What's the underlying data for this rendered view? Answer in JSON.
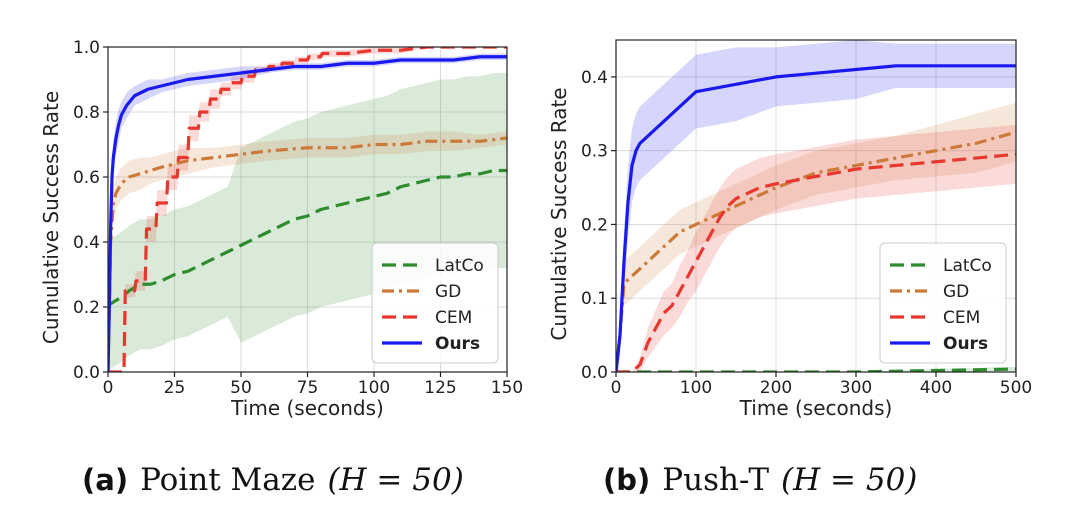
{
  "chart_data": [
    {
      "type": "line",
      "caption_letter": "(a)",
      "caption_title": "Point Maze",
      "caption_math": "(H = 50)",
      "xlabel": "Time (seconds)",
      "ylabel": "Cumulative Success Rate",
      "xlim": [
        0,
        150
      ],
      "ylim": [
        0,
        1.0
      ],
      "xticks": [
        0,
        25,
        50,
        75,
        100,
        125,
        150
      ],
      "yticks": [
        0.0,
        0.2,
        0.4,
        0.6,
        0.8,
        1.0
      ],
      "grid": true,
      "legend_position": "lower-right",
      "series": [
        {
          "name": "LatCo",
          "color": "#2e8b2e",
          "style": "dashed",
          "bold": false,
          "x": [
            0,
            1,
            3,
            5,
            8,
            12,
            16,
            20,
            25,
            30,
            35,
            40,
            45,
            50,
            55,
            60,
            65,
            70,
            75,
            80,
            85,
            90,
            95,
            100,
            105,
            110,
            115,
            120,
            125,
            130,
            135,
            140,
            145,
            150
          ],
          "y": [
            0.2,
            0.21,
            0.22,
            0.23,
            0.25,
            0.27,
            0.27,
            0.28,
            0.3,
            0.31,
            0.33,
            0.35,
            0.37,
            0.39,
            0.41,
            0.43,
            0.45,
            0.47,
            0.48,
            0.5,
            0.51,
            0.52,
            0.53,
            0.54,
            0.55,
            0.57,
            0.58,
            0.59,
            0.6,
            0.6,
            0.61,
            0.61,
            0.62,
            0.62
          ],
          "band": [
            0.2,
            0.2,
            0.2,
            0.2,
            0.2,
            0.2,
            0.2,
            0.2,
            0.2,
            0.2,
            0.2,
            0.2,
            0.2,
            0.3,
            0.3,
            0.3,
            0.3,
            0.3,
            0.3,
            0.3,
            0.3,
            0.3,
            0.3,
            0.3,
            0.3,
            0.3,
            0.3,
            0.3,
            0.3,
            0.3,
            0.3,
            0.3,
            0.3,
            0.3
          ]
        },
        {
          "name": "GD",
          "color": "#cc7a3a",
          "style": "dashdot",
          "bold": false,
          "x": [
            0,
            0.5,
            1,
            2,
            3,
            5,
            8,
            12,
            16,
            20,
            25,
            30,
            40,
            50,
            60,
            75,
            90,
            100,
            110,
            120,
            130,
            140,
            150
          ],
          "y": [
            0.0,
            0.2,
            0.4,
            0.52,
            0.55,
            0.58,
            0.6,
            0.61,
            0.62,
            0.63,
            0.64,
            0.65,
            0.66,
            0.67,
            0.68,
            0.69,
            0.69,
            0.7,
            0.7,
            0.71,
            0.71,
            0.71,
            0.72
          ],
          "band": [
            0.0,
            0.03,
            0.04,
            0.05,
            0.05,
            0.05,
            0.05,
            0.05,
            0.04,
            0.04,
            0.04,
            0.04,
            0.03,
            0.03,
            0.03,
            0.03,
            0.03,
            0.03,
            0.03,
            0.03,
            0.03,
            0.02,
            0.02
          ]
        },
        {
          "name": "CEM",
          "color": "#e8372e",
          "style": "dashed",
          "bold": false,
          "x": [
            0,
            5,
            6,
            6.5,
            10,
            10.5,
            14,
            14.5,
            18,
            18.5,
            22,
            22.5,
            26,
            26.5,
            30,
            30.5,
            34,
            34.5,
            38,
            38.5,
            42,
            42.5,
            46,
            46.5,
            50,
            50.5,
            55,
            55.5,
            60,
            60.5,
            65,
            65.5,
            70,
            70.5,
            75,
            75.5,
            80,
            80.5,
            90,
            100,
            110,
            120,
            130,
            140,
            150
          ],
          "y": [
            0.0,
            0.0,
            0.0,
            0.25,
            0.25,
            0.28,
            0.28,
            0.44,
            0.44,
            0.52,
            0.52,
            0.6,
            0.6,
            0.66,
            0.66,
            0.75,
            0.75,
            0.8,
            0.8,
            0.84,
            0.84,
            0.87,
            0.87,
            0.89,
            0.89,
            0.91,
            0.91,
            0.93,
            0.93,
            0.94,
            0.94,
            0.95,
            0.95,
            0.96,
            0.96,
            0.97,
            0.97,
            0.98,
            0.98,
            0.99,
            0.99,
            1.0,
            1.0,
            1.0,
            1.0
          ],
          "band": [
            0.0,
            0.0,
            0.0,
            0.02,
            0.02,
            0.03,
            0.03,
            0.04,
            0.04,
            0.04,
            0.04,
            0.04,
            0.04,
            0.04,
            0.04,
            0.04,
            0.04,
            0.03,
            0.03,
            0.03,
            0.03,
            0.02,
            0.02,
            0.02,
            0.02,
            0.02,
            0.02,
            0.01,
            0.01,
            0.01,
            0.01,
            0.01,
            0.01,
            0.01,
            0.01,
            0.01,
            0.01,
            0.01,
            0.01,
            0.01,
            0.01,
            0.0,
            0.0,
            0.0,
            0.0
          ]
        },
        {
          "name": "Ours",
          "color": "#1a1aee",
          "style": "solid",
          "bold": true,
          "x": [
            0,
            0.5,
            1,
            1.5,
            2,
            3,
            4,
            5,
            7,
            10,
            15,
            20,
            25,
            30,
            40,
            50,
            60,
            70,
            80,
            90,
            100,
            110,
            120,
            130,
            140,
            150
          ],
          "y": [
            0.0,
            0.2,
            0.45,
            0.6,
            0.66,
            0.72,
            0.76,
            0.79,
            0.82,
            0.85,
            0.87,
            0.88,
            0.89,
            0.9,
            0.91,
            0.92,
            0.93,
            0.94,
            0.94,
            0.95,
            0.95,
            0.96,
            0.96,
            0.96,
            0.97,
            0.97
          ],
          "band": [
            0.0,
            0.04,
            0.05,
            0.05,
            0.05,
            0.05,
            0.05,
            0.04,
            0.04,
            0.03,
            0.03,
            0.02,
            0.02,
            0.02,
            0.02,
            0.02,
            0.01,
            0.01,
            0.01,
            0.01,
            0.01,
            0.01,
            0.01,
            0.01,
            0.01,
            0.01
          ]
        }
      ]
    },
    {
      "type": "line",
      "caption_letter": "(b)",
      "caption_title": "Push-T",
      "caption_math": "(H = 50)",
      "xlabel": "Time (seconds)",
      "ylabel": "Cumulative Success Rate",
      "xlim": [
        0,
        500
      ],
      "ylim": [
        0,
        0.45
      ],
      "xticks": [
        0,
        100,
        200,
        300,
        400,
        500
      ],
      "yticks": [
        0.0,
        0.1,
        0.2,
        0.3,
        0.4
      ],
      "grid": true,
      "legend_position": "lower-right",
      "series": [
        {
          "name": "LatCo",
          "color": "#2e8b2e",
          "style": "dashed",
          "bold": false,
          "x": [
            0,
            100,
            200,
            300,
            400,
            500
          ],
          "y": [
            0.0,
            0.0,
            0.0,
            0.0,
            0.002,
            0.004
          ],
          "band": [
            0.0,
            0.0,
            0.0,
            0.0,
            0.002,
            0.003
          ]
        },
        {
          "name": "GD",
          "color": "#cc7a3a",
          "style": "dashdot",
          "bold": false,
          "x": [
            0,
            5,
            10,
            20,
            40,
            60,
            80,
            100,
            120,
            140,
            160,
            200,
            250,
            300,
            350,
            400,
            450,
            500
          ],
          "y": [
            0.0,
            0.05,
            0.12,
            0.13,
            0.15,
            0.17,
            0.19,
            0.2,
            0.21,
            0.22,
            0.23,
            0.25,
            0.27,
            0.28,
            0.29,
            0.3,
            0.31,
            0.325
          ],
          "band": [
            0.0,
            0.02,
            0.03,
            0.03,
            0.03,
            0.03,
            0.03,
            0.03,
            0.03,
            0.03,
            0.03,
            0.03,
            0.03,
            0.03,
            0.03,
            0.035,
            0.04,
            0.04
          ]
        },
        {
          "name": "CEM",
          "color": "#e8372e",
          "style": "dashed",
          "bold": false,
          "x": [
            0,
            20,
            25,
            30,
            40,
            50,
            60,
            70,
            80,
            90,
            100,
            110,
            120,
            130,
            140,
            150,
            160,
            180,
            200,
            250,
            300,
            350,
            400,
            450,
            500
          ],
          "y": [
            0.0,
            0.0,
            0.005,
            0.01,
            0.04,
            0.06,
            0.08,
            0.09,
            0.11,
            0.13,
            0.15,
            0.17,
            0.19,
            0.21,
            0.225,
            0.235,
            0.24,
            0.25,
            0.255,
            0.265,
            0.275,
            0.28,
            0.285,
            0.29,
            0.295
          ],
          "band": [
            0.0,
            0.0,
            0.005,
            0.01,
            0.02,
            0.025,
            0.03,
            0.03,
            0.035,
            0.035,
            0.04,
            0.04,
            0.04,
            0.04,
            0.04,
            0.04,
            0.04,
            0.04,
            0.04,
            0.04,
            0.04,
            0.04,
            0.04,
            0.04,
            0.04
          ]
        },
        {
          "name": "Ours",
          "color": "#1a1aee",
          "style": "solid",
          "bold": true,
          "x": [
            0,
            5,
            10,
            15,
            20,
            25,
            30,
            40,
            60,
            80,
            100,
            150,
            200,
            250,
            300,
            350,
            400,
            450,
            500
          ],
          "y": [
            0.0,
            0.05,
            0.15,
            0.23,
            0.28,
            0.3,
            0.31,
            0.32,
            0.34,
            0.36,
            0.38,
            0.39,
            0.4,
            0.405,
            0.41,
            0.415,
            0.415,
            0.415,
            0.415
          ],
          "band": [
            0.0,
            0.03,
            0.04,
            0.05,
            0.05,
            0.05,
            0.05,
            0.05,
            0.05,
            0.05,
            0.05,
            0.05,
            0.04,
            0.04,
            0.04,
            0.03,
            0.03,
            0.03,
            0.03
          ]
        }
      ]
    }
  ]
}
